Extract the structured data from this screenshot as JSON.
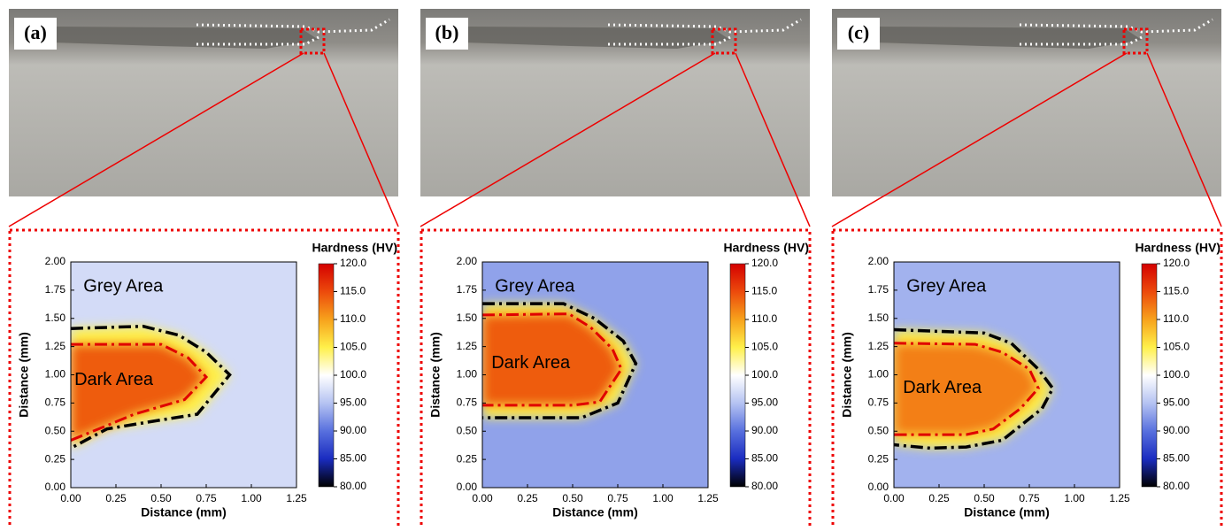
{
  "chart_data": [
    {
      "type": "contour",
      "label": "(a)",
      "xlabel": "Distance (mm)",
      "ylabel": "Distance (mm)",
      "xlim": [
        0,
        1.25
      ],
      "ylim": [
        0,
        2
      ],
      "xticks": [
        {
          "value": 0,
          "label": "0.00"
        },
        {
          "value": 0.25,
          "label": "0.25"
        },
        {
          "value": 0.5,
          "label": "0.50"
        },
        {
          "value": 0.75,
          "label": "0.75"
        },
        {
          "value": 1,
          "label": "1.00"
        },
        {
          "value": 1.25,
          "label": "1.25"
        }
      ],
      "yticks": [
        {
          "value": 0,
          "label": "0.00"
        },
        {
          "value": 0.25,
          "label": "0.25"
        },
        {
          "value": 0.5,
          "label": "0.50"
        },
        {
          "value": 0.75,
          "label": "0.75"
        },
        {
          "value": 1,
          "label": "1.00"
        },
        {
          "value": 1.25,
          "label": "1.25"
        },
        {
          "value": 1.5,
          "label": "1.50"
        },
        {
          "value": 1.75,
          "label": "1.75"
        },
        {
          "value": 2,
          "label": "2.00"
        }
      ],
      "colorbar_title": "Hardness (HV)",
      "clim": [
        80,
        120
      ],
      "cticks": [
        {
          "value": 120,
          "label": "120.0"
        },
        {
          "value": 115,
          "label": "115.0"
        },
        {
          "value": 110,
          "label": "110.0"
        },
        {
          "value": 105,
          "label": "105.0"
        },
        {
          "value": 100,
          "label": "100.0"
        },
        {
          "value": 95,
          "label": "95.00"
        },
        {
          "value": 90,
          "label": "90.00"
        },
        {
          "value": 85,
          "label": "85.00"
        },
        {
          "value": 80,
          "label": "80.00"
        }
      ],
      "colors": [
        "#d40000",
        "#ec4a0c",
        "#f7a21c",
        "#fff04a",
        "#ffffff",
        "#b5c3f2",
        "#5870de",
        "#1a2cc0",
        "#000000"
      ],
      "grey_hardness": 97,
      "dark_hardness": 114,
      "annotations": [
        {
          "text": "Grey Area",
          "x": 0.07,
          "y": 1.78
        },
        {
          "text": "Dark Area",
          "x": 0.02,
          "y": 0.95
        }
      ],
      "outer_boundary": {
        "color": "#000000",
        "x": [
          0,
          0.4,
          0.6,
          0.75,
          0.88,
          0.7,
          0.5,
          0.2,
          0
        ],
        "y": [
          1.41,
          1.43,
          1.35,
          1.2,
          1.0,
          0.65,
          0.6,
          0.52,
          0.35
        ]
      },
      "inner_boundary": {
        "color": "#e00000",
        "x": [
          0,
          0.5,
          0.65,
          0.75,
          0.63,
          0.5,
          0.35,
          0.2,
          0
        ],
        "y": [
          1.27,
          1.27,
          1.15,
          0.98,
          0.78,
          0.72,
          0.65,
          0.55,
          0.42
        ]
      }
    },
    {
      "type": "contour",
      "label": "(b)",
      "xlabel": "Distance (mm)",
      "ylabel": "Distance (mm)",
      "xlim": [
        0,
        1.25
      ],
      "ylim": [
        0,
        2
      ],
      "xticks": [
        {
          "value": 0,
          "label": "0.00"
        },
        {
          "value": 0.25,
          "label": "0.25"
        },
        {
          "value": 0.5,
          "label": "0.50"
        },
        {
          "value": 0.75,
          "label": "0.75"
        },
        {
          "value": 1,
          "label": "1.00"
        },
        {
          "value": 1.25,
          "label": "1.25"
        }
      ],
      "yticks": [
        {
          "value": 0,
          "label": "0.00"
        },
        {
          "value": 0.25,
          "label": "0.25"
        },
        {
          "value": 0.5,
          "label": "0.50"
        },
        {
          "value": 0.75,
          "label": "0.75"
        },
        {
          "value": 1,
          "label": "1.00"
        },
        {
          "value": 1.25,
          "label": "1.25"
        },
        {
          "value": 1.5,
          "label": "1.50"
        },
        {
          "value": 1.75,
          "label": "1.75"
        },
        {
          "value": 2,
          "label": "2.00"
        }
      ],
      "colorbar_title": "Hardness (HV)",
      "clim": [
        80,
        120
      ],
      "cticks": [
        {
          "value": 120,
          "label": "120.0"
        },
        {
          "value": 115,
          "label": "115.0"
        },
        {
          "value": 110,
          "label": "110.0"
        },
        {
          "value": 105,
          "label": "105.0"
        },
        {
          "value": 100,
          "label": "100.0"
        },
        {
          "value": 95,
          "label": "95.00"
        },
        {
          "value": 90,
          "label": "90.00"
        },
        {
          "value": 85,
          "label": "85.00"
        },
        {
          "value": 80,
          "label": "80.00"
        }
      ],
      "colors": [
        "#d40000",
        "#ec4a0c",
        "#f7a21c",
        "#fff04a",
        "#ffffff",
        "#b5c3f2",
        "#5870de",
        "#1a2cc0",
        "#000000"
      ],
      "grey_hardness": 93,
      "dark_hardness": 114,
      "annotations": [
        {
          "text": "Grey Area",
          "x": 0.07,
          "y": 1.78
        },
        {
          "text": "Dark Area",
          "x": 0.05,
          "y": 1.1
        }
      ],
      "outer_boundary": {
        "color": "#000000",
        "x": [
          0,
          0.45,
          0.62,
          0.78,
          0.85,
          0.75,
          0.55,
          0
        ],
        "y": [
          1.63,
          1.63,
          1.5,
          1.3,
          1.1,
          0.75,
          0.62,
          0.62
        ]
      },
      "inner_boundary": {
        "color": "#e00000",
        "x": [
          0,
          0.48,
          0.6,
          0.72,
          0.77,
          0.65,
          0.5,
          0
        ],
        "y": [
          1.53,
          1.54,
          1.42,
          1.23,
          1.05,
          0.76,
          0.73,
          0.73
        ]
      }
    },
    {
      "type": "contour",
      "label": "(c)",
      "xlabel": "Distance (mm)",
      "ylabel": "Distance (mm)",
      "xlim": [
        0,
        1.25
      ],
      "ylim": [
        0,
        2
      ],
      "xticks": [
        {
          "value": 0,
          "label": "0.00"
        },
        {
          "value": 0.25,
          "label": "0.25"
        },
        {
          "value": 0.5,
          "label": "0.50"
        },
        {
          "value": 0.75,
          "label": "0.75"
        },
        {
          "value": 1,
          "label": "1.00"
        },
        {
          "value": 1.25,
          "label": "1.25"
        }
      ],
      "yticks": [
        {
          "value": 0,
          "label": "0.00"
        },
        {
          "value": 0.25,
          "label": "0.25"
        },
        {
          "value": 0.5,
          "label": "0.50"
        },
        {
          "value": 0.75,
          "label": "0.75"
        },
        {
          "value": 1,
          "label": "1.00"
        },
        {
          "value": 1.25,
          "label": "1.25"
        },
        {
          "value": 1.5,
          "label": "1.50"
        },
        {
          "value": 1.75,
          "label": "1.75"
        },
        {
          "value": 2,
          "label": "2.00"
        }
      ],
      "colorbar_title": "Hardness (HV)",
      "clim": [
        80,
        120
      ],
      "cticks": [
        {
          "value": 120,
          "label": "120.0"
        },
        {
          "value": 115,
          "label": "115.0"
        },
        {
          "value": 110,
          "label": "110.0"
        },
        {
          "value": 105,
          "label": "105.0"
        },
        {
          "value": 100,
          "label": "100.0"
        },
        {
          "value": 95,
          "label": "95.00"
        },
        {
          "value": 90,
          "label": "90.00"
        },
        {
          "value": 85,
          "label": "85.00"
        },
        {
          "value": 80,
          "label": "80.00"
        }
      ],
      "colors": [
        "#d40000",
        "#ec4a0c",
        "#f7a21c",
        "#fff04a",
        "#ffffff",
        "#b5c3f2",
        "#5870de",
        "#1a2cc0",
        "#000000"
      ],
      "grey_hardness": 94,
      "dark_hardness": 112,
      "annotations": [
        {
          "text": "Grey Area",
          "x": 0.07,
          "y": 1.78
        },
        {
          "text": "Dark Area",
          "x": 0.05,
          "y": 0.88
        }
      ],
      "outer_boundary": {
        "color": "#000000",
        "x": [
          0,
          0.5,
          0.65,
          0.8,
          0.88,
          0.82,
          0.6,
          0.4,
          0.2,
          0
        ],
        "y": [
          1.4,
          1.37,
          1.28,
          1.05,
          0.88,
          0.7,
          0.42,
          0.36,
          0.35,
          0.38
        ]
      },
      "inner_boundary": {
        "color": "#e00000",
        "x": [
          0,
          0.45,
          0.6,
          0.75,
          0.8,
          0.7,
          0.55,
          0.4,
          0
        ],
        "y": [
          1.28,
          1.27,
          1.2,
          1.05,
          0.88,
          0.7,
          0.52,
          0.47,
          0.47
        ]
      }
    }
  ]
}
